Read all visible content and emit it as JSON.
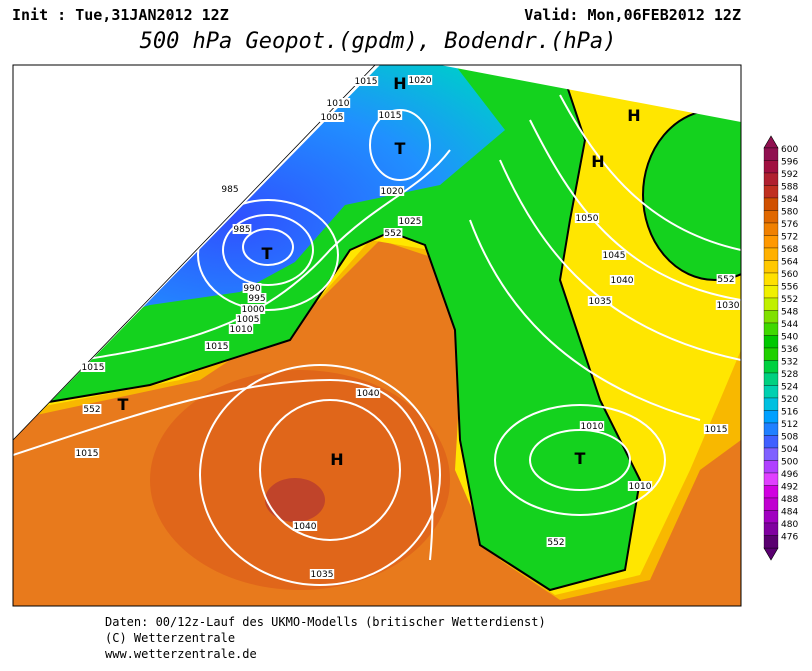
{
  "header": {
    "init": "Init : Tue,31JAN2012 12Z",
    "valid": "Valid: Mon,06FEB2012 12Z",
    "title": "500 hPa Geopot.(gpdm), Bodendr.(hPa)"
  },
  "map_labels": [
    "H",
    "1015",
    "1020",
    "1010",
    "1005",
    "1015",
    "T",
    "1020",
    "985",
    "985",
    "T",
    "1025",
    "552",
    "990",
    "995",
    "1000",
    "1005",
    "1010",
    "1015",
    "1015",
    "552",
    "T",
    "1015",
    "1040",
    "H",
    "1040",
    "1035",
    "H",
    "H",
    "1050",
    "1045",
    "1040",
    "1035",
    "552",
    "1030",
    "1010",
    "T",
    "1010",
    "1015",
    "552"
  ],
  "colorbar": {
    "levels": [
      600,
      596,
      592,
      588,
      584,
      580,
      576,
      572,
      568,
      564,
      560,
      556,
      552,
      548,
      544,
      540,
      536,
      532,
      528,
      524,
      520,
      516,
      512,
      508,
      504,
      500,
      496,
      492,
      488,
      484,
      480,
      476
    ],
    "colors": [
      "#901050",
      "#a01040",
      "#b02030",
      "#c03020",
      "#d05000",
      "#e06800",
      "#f08000",
      "#ff9800",
      "#ffb000",
      "#ffc800",
      "#ffe000",
      "#f0f000",
      "#c0f000",
      "#80e000",
      "#40d800",
      "#00c800",
      "#20d000",
      "#00d040",
      "#00d080",
      "#00d0b0",
      "#00c0e0",
      "#00a0ff",
      "#2080ff",
      "#4060ff",
      "#8060ff",
      "#b040ff",
      "#e040ff",
      "#d000e0",
      "#c000d0",
      "#a000c0",
      "#8000a0",
      "#5a0070"
    ]
  },
  "footer": [
    "Daten: 00/12z-Lauf des UKMO-Modells (britischer Wetterdienst)",
    "(C) Wetterzentrale",
    "www.wetterzentrale.de"
  ]
}
